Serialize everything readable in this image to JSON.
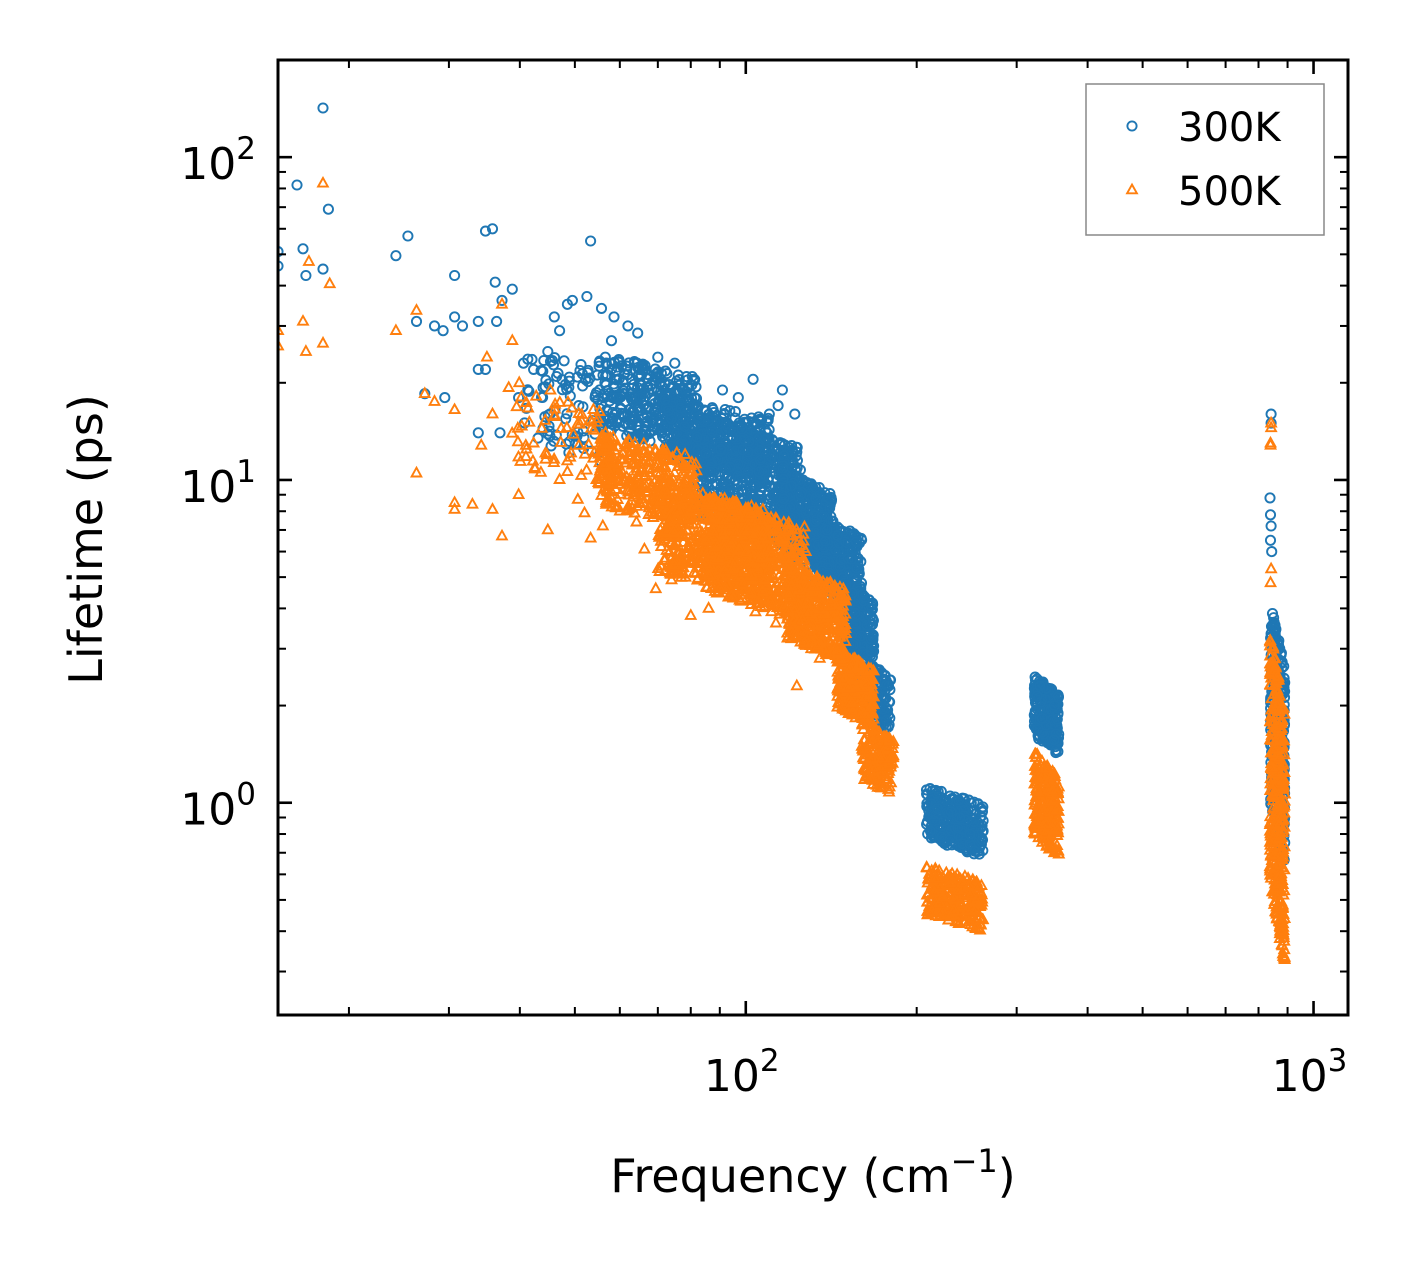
{
  "chart_data": {
    "type": "scatter",
    "xscale": "log",
    "yscale": "log",
    "xlim": [
      15,
      1150
    ],
    "ylim": [
      0.22,
      200
    ],
    "xlabel": {
      "text": "Frequency (cm",
      "sup": "−1",
      "suffix": ")"
    },
    "ylabel": "Lifetime (ps)",
    "x_ticks": [
      {
        "value": 100,
        "base": "10",
        "exp": "2"
      },
      {
        "value": 1000,
        "base": "10",
        "exp": "3"
      }
    ],
    "y_ticks": [
      {
        "value": 1,
        "base": "10",
        "exp": "0"
      },
      {
        "value": 10,
        "base": "10",
        "exp": "1"
      },
      {
        "value": 100,
        "base": "10",
        "exp": "2"
      }
    ],
    "legend": {
      "position": "top-right",
      "frame": true
    },
    "series": [
      {
        "name": "300K",
        "marker": "circle",
        "color": "#1f77b4",
        "explicit_points": [
          [
            18,
            142
          ],
          [
            16.2,
            82
          ],
          [
            18.4,
            69
          ],
          [
            15,
            51
          ],
          [
            15,
            46
          ],
          [
            16.6,
            52
          ],
          [
            16.8,
            43
          ],
          [
            18,
            45
          ],
          [
            24.2,
            49.5
          ],
          [
            25.4,
            57
          ],
          [
            26.3,
            31
          ],
          [
            28.3,
            30
          ],
          [
            29.3,
            29
          ],
          [
            30.7,
            32
          ],
          [
            30.7,
            43
          ],
          [
            31.7,
            30
          ],
          [
            33.8,
            31
          ],
          [
            34.8,
            59
          ],
          [
            35.8,
            60
          ],
          [
            36.2,
            41
          ],
          [
            37.2,
            36
          ],
          [
            38.8,
            39
          ],
          [
            36.4,
            31
          ],
          [
            34.8,
            22
          ],
          [
            33.8,
            22
          ],
          [
            27.2,
            18.5
          ],
          [
            29.5,
            18
          ],
          [
            33.8,
            14
          ],
          [
            36.9,
            14
          ],
          [
            39.8,
            18
          ],
          [
            40.6,
            23
          ],
          [
            42.3,
            22
          ],
          [
            48.5,
            35
          ],
          [
            49.5,
            36
          ],
          [
            52.5,
            37
          ],
          [
            53.3,
            55
          ],
          [
            55.7,
            34
          ],
          [
            58.6,
            32
          ],
          [
            62,
            30
          ],
          [
            58,
            27
          ],
          [
            47,
            29
          ],
          [
            44.8,
            25
          ],
          [
            46,
            32
          ],
          [
            64.5,
            28.5
          ],
          [
            66,
            22
          ],
          [
            70,
            24
          ],
          [
            75,
            23
          ],
          [
            82,
            17
          ],
          [
            91,
            19
          ],
          [
            97,
            18
          ],
          [
            103,
            20.5
          ],
          [
            110,
            16
          ],
          [
            116,
            19
          ],
          [
            122,
            16
          ],
          [
            114,
            17
          ]
        ],
        "clusters": [
          {
            "x": [
              40,
              56
            ],
            "y": [
              11,
              27
            ],
            "n": 80
          },
          {
            "x": [
              55,
              82
            ],
            "y": [
              12,
              25
            ],
            "n": 320
          },
          {
            "x": [
              72,
              110
            ],
            "y": [
              10,
              18
            ],
            "n": 380
          },
          {
            "x": [
              82,
              125
            ],
            "y": [
              6,
              16
            ],
            "n": 650
          },
          {
            "x": [
              115,
              142
            ],
            "y": [
              5,
              11
            ],
            "n": 380
          },
          {
            "x": [
              132,
              160
            ],
            "y": [
              4,
              8
            ],
            "n": 320
          },
          {
            "x": [
              148,
              168
            ],
            "y": [
              2.4,
              5
            ],
            "n": 240
          },
          {
            "x": [
              160,
              180
            ],
            "y": [
              1.65,
              2.8
            ],
            "n": 130
          },
          {
            "x": [
              208,
              262
            ],
            "y": [
              0.68,
              1.12
            ],
            "n": 280
          },
          {
            "x": [
              322,
              356
            ],
            "y": [
              1.4,
              2.5
            ],
            "n": 240
          },
          {
            "x": [
              840,
              890
            ],
            "y": [
              0.62,
              4.2
            ],
            "n": 320
          }
        ],
        "column_points": [
          [
            842,
            16
          ],
          [
            842,
            15
          ],
          [
            838,
            8.8
          ],
          [
            840,
            7.8
          ],
          [
            842,
            7.2
          ],
          [
            840,
            6.5
          ],
          [
            844,
            6
          ]
        ]
      },
      {
        "name": "500K",
        "marker": "triangle",
        "color": "#ff7f0e",
        "explicit_points": [
          [
            18,
            83
          ],
          [
            17,
            47.5
          ],
          [
            18.5,
            40.5
          ],
          [
            15,
            29
          ],
          [
            15,
            26
          ],
          [
            16.6,
            31
          ],
          [
            16.8,
            25
          ],
          [
            18,
            26.5
          ],
          [
            24.2,
            29
          ],
          [
            26.3,
            33.5
          ],
          [
            27.2,
            18.5
          ],
          [
            28.3,
            17.5
          ],
          [
            30.7,
            16.5
          ],
          [
            30.7,
            8.5
          ],
          [
            30.7,
            8.1
          ],
          [
            26.3,
            10.5
          ],
          [
            33,
            8.4
          ],
          [
            35.8,
            8.1
          ],
          [
            37.2,
            35
          ],
          [
            38.8,
            27
          ],
          [
            35,
            24
          ],
          [
            34.2,
            12.8
          ],
          [
            35.8,
            16
          ],
          [
            39.8,
            9
          ],
          [
            41,
            11.8
          ],
          [
            42.3,
            13
          ],
          [
            37.2,
            6.7
          ],
          [
            44.8,
            7
          ],
          [
            48.5,
            10.6
          ],
          [
            50.6,
            8.7
          ],
          [
            52,
            7.9
          ],
          [
            53.3,
            6.6
          ],
          [
            56,
            7.2
          ],
          [
            60,
            8
          ],
          [
            64.2,
            7.4
          ],
          [
            66.3,
            6.1
          ],
          [
            69.4,
            4.6
          ],
          [
            70.5,
            5.2
          ],
          [
            74,
            4.9
          ],
          [
            80,
            3.8
          ],
          [
            86,
            4
          ],
          [
            95,
            4.3
          ],
          [
            104,
            3.9
          ],
          [
            113,
            3.6
          ],
          [
            123,
            2.3
          ],
          [
            135,
            2.8
          ]
        ],
        "clusters": [
          {
            "x": [
              38,
              58
            ],
            "y": [
              9,
              21
            ],
            "n": 80
          },
          {
            "x": [
              55,
              82
            ],
            "y": [
              7,
              14
            ],
            "n": 340
          },
          {
            "x": [
              70,
              110
            ],
            "y": [
              4.2,
              10
            ],
            "n": 500
          },
          {
            "x": [
              85,
              128
            ],
            "y": [
              3.6,
              9
            ],
            "n": 580
          },
          {
            "x": [
              118,
              150
            ],
            "y": [
              2.7,
              5.5
            ],
            "n": 380
          },
          {
            "x": [
              145,
              168
            ],
            "y": [
              1.7,
              3
            ],
            "n": 260
          },
          {
            "x": [
              160,
              182
            ],
            "y": [
              1.04,
              1.8
            ],
            "n": 150
          },
          {
            "x": [
              208,
              262
            ],
            "y": [
              0.4,
              0.64
            ],
            "n": 260
          },
          {
            "x": [
              322,
              356
            ],
            "y": [
              0.66,
              1.45
            ],
            "n": 260
          },
          {
            "x": [
              838,
              890
            ],
            "y": [
              0.31,
              3.5
            ],
            "n": 360
          }
        ],
        "column_points": [
          [
            842,
            15
          ],
          [
            842,
            14.5
          ],
          [
            840,
            13
          ],
          [
            840,
            12.8
          ],
          [
            842,
            5.3
          ],
          [
            840,
            4.8
          ]
        ]
      }
    ]
  }
}
